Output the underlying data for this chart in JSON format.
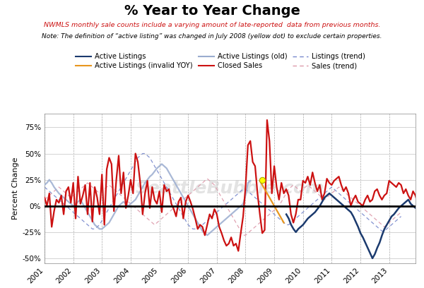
{
  "title": "% Year to Year Change",
  "subtitle1": "NWMLS monthly sale counts include a varying amount of late-reported  data from previous months.",
  "subtitle2": "Note: The definition of “active listing” was changed in July 2008 (yellow dot) to exclude certain properties.",
  "ylabel": "Percent Change",
  "xlim_start": 2001.0,
  "xlim_end": 2013.92,
  "ylim": [
    -0.55,
    0.88
  ],
  "yticks": [
    -0.5,
    -0.25,
    0.0,
    0.25,
    0.5,
    0.75
  ],
  "ytick_labels": [
    "-50%",
    "-25%",
    "0%",
    "25%",
    "50%",
    "75%"
  ],
  "background_color": "#ffffff",
  "watermark": "SeattleBubble.com",
  "colors": {
    "active_listings": "#1b3a6e",
    "active_listings_invalid": "#e8961e",
    "active_listings_old": "#9aaccf",
    "closed_sales": "#cc1111",
    "listings_trend": "#7788cc",
    "sales_trend": "#dd99aa"
  },
  "closed_sales_t0": 2001.0,
  "closed_sales": [
    0.08,
    0.0,
    0.12,
    -0.2,
    -0.05,
    0.06,
    0.03,
    0.1,
    -0.08,
    0.14,
    0.18,
    0.03,
    0.22,
    -0.12,
    0.28,
    0.02,
    0.1,
    0.2,
    -0.08,
    0.22,
    -0.15,
    0.18,
    0.08,
    -0.08,
    0.3,
    -0.18,
    0.35,
    0.46,
    0.4,
    -0.05,
    0.25,
    0.48,
    0.12,
    0.32,
    -0.02,
    0.1,
    0.25,
    0.12,
    0.5,
    0.42,
    0.22,
    -0.08,
    0.12,
    0.24,
    -0.02,
    0.18,
    0.06,
    0.02,
    0.14,
    -0.06,
    0.2,
    0.14,
    0.16,
    0.02,
    -0.03,
    -0.1,
    0.04,
    0.08,
    -0.12,
    0.04,
    0.1,
    0.04,
    -0.03,
    -0.12,
    -0.22,
    -0.18,
    -0.2,
    -0.28,
    -0.18,
    -0.08,
    -0.12,
    -0.03,
    -0.08,
    -0.2,
    -0.26,
    -0.33,
    -0.38,
    -0.36,
    -0.3,
    -0.38,
    -0.36,
    -0.43,
    -0.26,
    -0.1,
    0.18,
    0.58,
    0.62,
    0.42,
    0.38,
    0.12,
    -0.08,
    -0.26,
    -0.23,
    0.82,
    0.62,
    0.12,
    0.38,
    0.18,
    0.06,
    0.22,
    0.12,
    0.16,
    0.1,
    -0.08,
    -0.16,
    -0.08,
    0.06,
    0.06,
    0.24,
    0.22,
    0.28,
    0.2,
    0.32,
    0.22,
    0.14,
    0.2,
    0.06,
    0.12,
    0.26,
    0.22,
    0.2,
    0.24,
    0.26,
    0.28,
    0.2,
    0.14,
    0.18,
    0.12,
    0.0,
    0.06,
    0.1,
    0.04,
    0.02,
    0.0,
    0.06,
    0.1,
    0.04,
    0.06,
    0.14,
    0.16,
    0.1,
    0.06,
    0.1,
    0.12,
    0.24,
    0.22,
    0.2,
    0.18,
    0.22,
    0.2,
    0.12,
    0.16,
    0.1,
    0.06,
    0.14,
    0.1,
    0.02,
    0.05,
    0.01
  ],
  "al_old_t0": 2001.0,
  "active_listings_old": [
    0.2,
    0.22,
    0.25,
    0.22,
    0.18,
    0.15,
    0.12,
    0.1,
    0.08,
    0.06,
    0.04,
    0.02,
    0.0,
    0.02,
    0.04,
    0.06,
    0.02,
    -0.02,
    -0.06,
    -0.1,
    -0.14,
    -0.18,
    -0.2,
    -0.22,
    -0.22,
    -0.2,
    -0.18,
    -0.16,
    -0.12,
    -0.08,
    -0.04,
    0.0,
    0.02,
    0.04,
    0.02,
    0.0,
    0.02,
    0.04,
    0.06,
    0.1,
    0.14,
    0.18,
    0.22,
    0.25,
    0.28,
    0.3,
    0.33,
    0.36,
    0.38,
    0.4,
    0.38,
    0.36,
    0.32,
    0.28,
    0.24,
    0.2,
    0.16,
    0.12,
    0.08,
    0.04,
    0.0,
    -0.04,
    -0.08,
    -0.12,
    -0.16,
    -0.2,
    -0.24,
    -0.26,
    -0.28,
    -0.26,
    -0.24,
    -0.22,
    -0.2,
    -0.18,
    -0.16,
    -0.14,
    -0.12,
    -0.1,
    -0.08,
    -0.06,
    -0.04,
    -0.02,
    0.0,
    0.02,
    0.1,
    0.22,
    0.24
  ],
  "al_invalid_t0": 2008.5,
  "active_listings_invalid": [
    0.24,
    0.2,
    0.16,
    0.12,
    0.08,
    0.04,
    0.0,
    -0.04,
    -0.08,
    -0.12,
    -0.16
  ],
  "al_new_t0": 2009.42,
  "active_listings_new": [
    -0.08,
    -0.12,
    -0.18,
    -0.22,
    -0.25,
    -0.22,
    -0.2,
    -0.18,
    -0.15,
    -0.12,
    -0.1,
    -0.08,
    -0.06,
    -0.03,
    0.0,
    0.04,
    0.08,
    0.1,
    0.12,
    0.1,
    0.08,
    0.06,
    0.04,
    0.02,
    0.0,
    -0.02,
    -0.04,
    -0.06,
    -0.1,
    -0.15,
    -0.2,
    -0.26,
    -0.3,
    -0.35,
    -0.4,
    -0.45,
    -0.5,
    -0.46,
    -0.4,
    -0.35,
    -0.28,
    -0.22,
    -0.18,
    -0.14,
    -0.1,
    -0.08,
    -0.05,
    -0.02,
    0.0,
    0.02,
    0.04,
    0.06,
    0.02,
    0.0,
    -0.02,
    0.02
  ],
  "listings_trend_t0": 2001.0,
  "listings_trend": [
    0.18,
    0.16,
    0.14,
    0.12,
    0.1,
    0.08,
    0.06,
    0.04,
    0.02,
    0.0,
    -0.02,
    -0.04,
    -0.06,
    -0.08,
    -0.1,
    -0.12,
    -0.14,
    -0.16,
    -0.18,
    -0.2,
    -0.22,
    -0.22,
    -0.2,
    -0.18,
    -0.14,
    -0.1,
    -0.06,
    -0.02,
    0.02,
    0.06,
    0.1,
    0.14,
    0.18,
    0.22,
    0.26,
    0.3,
    0.34,
    0.38,
    0.42,
    0.46,
    0.48,
    0.5,
    0.5,
    0.48,
    0.46,
    0.42,
    0.38,
    0.34,
    0.3,
    0.26,
    0.22,
    0.18,
    0.14,
    0.1,
    0.06,
    0.02,
    -0.02,
    -0.06,
    -0.1,
    -0.14,
    -0.18,
    -0.2,
    -0.22,
    -0.22,
    -0.22,
    -0.2,
    -0.18,
    -0.16,
    -0.14,
    -0.12,
    -0.1,
    -0.08,
    -0.06,
    -0.04,
    -0.02,
    0.0,
    0.02,
    0.04,
    0.06,
    0.08,
    0.1,
    0.12,
    0.14,
    0.16,
    0.16,
    0.14,
    0.12,
    0.1,
    0.08,
    0.06,
    0.04,
    0.02,
    0.0,
    -0.02,
    -0.04,
    -0.06,
    -0.08,
    -0.1,
    -0.12,
    -0.14,
    -0.16,
    -0.18,
    -0.18,
    -0.16,
    -0.14,
    -0.12,
    -0.1,
    -0.08,
    -0.06,
    -0.04,
    -0.02,
    0.0,
    0.02,
    0.04,
    0.06,
    0.08,
    0.1,
    0.12,
    0.14,
    0.16,
    0.18,
    0.16,
    0.14,
    0.12,
    0.1,
    0.08,
    0.06,
    0.04,
    0.02,
    0.0,
    -0.02,
    -0.04,
    -0.06,
    -0.08,
    -0.1,
    -0.12,
    -0.14,
    -0.16,
    -0.18,
    -0.2,
    -0.22,
    -0.24,
    -0.24,
    -0.22,
    -0.2,
    -0.18,
    -0.16,
    -0.14,
    -0.12,
    -0.1
  ],
  "sales_trend_t0": 2001.0,
  "sales_trend": [
    0.06,
    0.08,
    0.1,
    0.12,
    0.14,
    0.16,
    0.18,
    0.16,
    0.14,
    0.12,
    0.1,
    0.08,
    0.1,
    0.12,
    0.14,
    0.16,
    0.18,
    0.2,
    0.22,
    0.2,
    0.18,
    0.16,
    0.14,
    0.12,
    0.14,
    0.16,
    0.18,
    0.2,
    0.18,
    0.16,
    0.14,
    0.12,
    0.1,
    0.08,
    0.06,
    0.04,
    0.02,
    0.0,
    -0.02,
    -0.04,
    -0.06,
    -0.08,
    -0.1,
    -0.12,
    -0.14,
    -0.16,
    -0.18,
    -0.16,
    -0.14,
    -0.12,
    -0.1,
    -0.08,
    -0.06,
    -0.04,
    -0.02,
    0.0,
    0.02,
    0.04,
    0.06,
    0.08,
    0.1,
    0.12,
    0.14,
    0.16,
    0.18,
    0.2,
    0.22,
    0.24,
    0.26,
    0.24,
    0.22,
    0.2,
    0.16,
    0.12,
    0.08,
    0.04,
    0.0,
    -0.04,
    -0.08,
    -0.12,
    -0.16,
    -0.2,
    -0.24,
    -0.28,
    -0.28,
    -0.26,
    -0.24,
    -0.22,
    -0.2,
    -0.18,
    -0.16,
    -0.14,
    -0.12,
    -0.1,
    -0.08,
    -0.06,
    -0.04,
    -0.02,
    0.0,
    0.04,
    0.08,
    0.12,
    0.16,
    0.18,
    0.2,
    0.18,
    0.16,
    0.14,
    0.16,
    0.18,
    0.2,
    0.18,
    0.16,
    0.14,
    0.12,
    0.1,
    0.08,
    0.06,
    0.08,
    0.1,
    0.12,
    0.14,
    0.16,
    0.18,
    0.16,
    0.14,
    0.12,
    0.1,
    0.08,
    0.06,
    0.04,
    0.02,
    0.0,
    -0.02,
    -0.04,
    -0.06,
    -0.08,
    -0.1,
    -0.12,
    -0.14,
    -0.16,
    -0.18,
    -0.2,
    -0.18,
    -0.16,
    -0.14,
    -0.12,
    -0.1,
    -0.08,
    -0.06
  ]
}
